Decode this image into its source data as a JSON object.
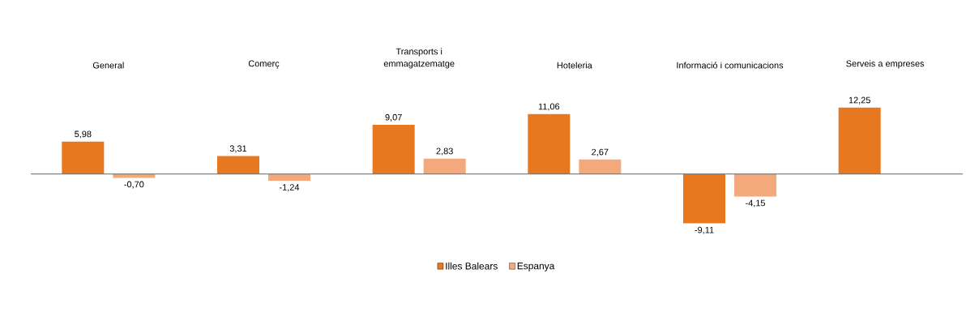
{
  "chart_data": {
    "type": "bar",
    "categories": [
      "General",
      "Comerç",
      "Transports i emmagatzematge",
      "Hoteleria",
      "Informació i comunicacions",
      "Serveis a empreses"
    ],
    "series": [
      {
        "name": "Illes Balears",
        "color": "#e8781f",
        "values": [
          5.98,
          3.31,
          9.07,
          11.06,
          -9.11,
          12.25
        ],
        "value_labels": [
          "5,98",
          "3,31",
          "9,07",
          "11,06",
          "-9,11",
          "12,25"
        ]
      },
      {
        "name": "Espanya",
        "color": "#f4a97c",
        "values": [
          -0.7,
          -1.24,
          2.83,
          2.67,
          -4.15,
          null
        ],
        "value_labels": [
          "-0,70",
          "-1,24",
          "2,83",
          "2,67",
          "-4,15",
          null
        ]
      }
    ],
    "legend": "bottom"
  }
}
